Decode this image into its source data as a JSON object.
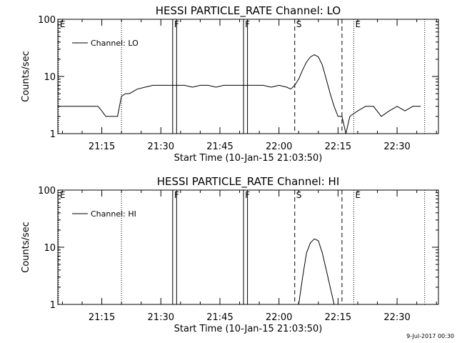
{
  "footer": {
    "stamp": "9-Jul-2017 00:30"
  },
  "chart_data": [
    {
      "type": "line",
      "title": "HESSI PARTICLE_RATE Channel: LO",
      "xlabel": "Start Time (10-Jan-15 21:03:50)",
      "ylabel": "Counts/sec",
      "xlim": [
        "21:03:50",
        "22:40:30"
      ],
      "ylim": [
        1,
        100
      ],
      "yscale": "log",
      "x_ticks": [
        "21:15",
        "21:30",
        "21:45",
        "22:00",
        "22:15",
        "22:30"
      ],
      "y_ticks": [
        "1",
        "10",
        "100"
      ],
      "legend": {
        "position": "top-left",
        "entries": [
          "Channel: LO"
        ]
      },
      "markers": [
        {
          "time": "21:04:00",
          "style": "dotted",
          "label": "E"
        },
        {
          "time": "21:20:00",
          "style": "dotted",
          "label": ""
        },
        {
          "time": "21:33:00",
          "style": "solid",
          "label": "F"
        },
        {
          "time": "21:34:00",
          "style": "solid",
          "label": ""
        },
        {
          "time": "21:51:00",
          "style": "solid",
          "label": "F"
        },
        {
          "time": "21:52:00",
          "style": "solid",
          "label": ""
        },
        {
          "time": "22:04:00",
          "style": "dashed",
          "label": "S"
        },
        {
          "time": "22:16:00",
          "style": "dashed",
          "label": ""
        },
        {
          "time": "22:19:00",
          "style": "dotted",
          "label": "E"
        },
        {
          "time": "22:37:00",
          "style": "dotted",
          "label": ""
        }
      ],
      "series": [
        {
          "name": "Channel: LO",
          "x": [
            "21:04",
            "21:06",
            "21:08",
            "21:10",
            "21:12",
            "21:14",
            "21:15",
            "21:16",
            "21:17",
            "21:18",
            "21:19",
            "21:20",
            "21:21",
            "21:22",
            "21:24",
            "21:26",
            "21:28",
            "21:30",
            "21:32",
            "21:34",
            "21:36",
            "21:38",
            "21:40",
            "21:42",
            "21:44",
            "21:46",
            "21:48",
            "21:50",
            "21:52",
            "21:54",
            "21:56",
            "21:58",
            "22:00",
            "22:02",
            "22:03",
            "22:04",
            "22:05",
            "22:06",
            "22:07",
            "22:08",
            "22:09",
            "22:10",
            "22:11",
            "22:12",
            "22:13",
            "22:14",
            "22:15",
            "22:16",
            "22:17",
            "22:18",
            "22:20",
            "22:22",
            "22:24",
            "22:26",
            "22:28",
            "22:30",
            "22:32",
            "22:34",
            "22:36"
          ],
          "y": [
            3,
            3,
            3,
            3,
            3,
            3,
            2.5,
            2,
            2,
            2,
            2,
            4.5,
            5,
            5,
            6,
            6.5,
            7,
            7,
            7,
            7,
            7,
            6.5,
            7,
            7,
            6.5,
            7,
            7,
            7,
            7,
            7,
            7,
            6.5,
            7,
            6.5,
            6,
            7,
            9,
            13,
            18,
            22,
            24,
            22,
            16,
            9,
            5,
            3,
            2,
            2,
            1,
            2,
            2.5,
            3,
            3,
            2,
            2.5,
            3,
            2.5,
            3,
            3
          ]
        }
      ]
    },
    {
      "type": "line",
      "title": "HESSI PARTICLE_RATE Channel: HI",
      "xlabel": "Start Time (10-Jan-15 21:03:50)",
      "ylabel": "Counts/sec",
      "xlim": [
        "21:03:50",
        "22:40:30"
      ],
      "ylim": [
        1,
        100
      ],
      "yscale": "log",
      "x_ticks": [
        "21:15",
        "21:30",
        "21:45",
        "22:00",
        "22:15",
        "22:30"
      ],
      "y_ticks": [
        "1",
        "10",
        "100"
      ],
      "legend": {
        "position": "top-left",
        "entries": [
          "Channel: HI"
        ]
      },
      "markers": [
        {
          "time": "21:04:00",
          "style": "dotted",
          "label": "E"
        },
        {
          "time": "21:20:00",
          "style": "dotted",
          "label": ""
        },
        {
          "time": "21:33:00",
          "style": "solid",
          "label": "F"
        },
        {
          "time": "21:34:00",
          "style": "solid",
          "label": ""
        },
        {
          "time": "21:51:00",
          "style": "solid",
          "label": "F"
        },
        {
          "time": "21:52:00",
          "style": "solid",
          "label": ""
        },
        {
          "time": "22:04:00",
          "style": "dashed",
          "label": "S"
        },
        {
          "time": "22:16:00",
          "style": "dashed",
          "label": ""
        },
        {
          "time": "22:19:00",
          "style": "dotted",
          "label": "E"
        },
        {
          "time": "22:37:00",
          "style": "dotted",
          "label": ""
        }
      ],
      "series": [
        {
          "name": "Channel: HI",
          "x": [
            "22:05",
            "22:06",
            "22:07",
            "22:08",
            "22:09",
            "22:10",
            "22:11",
            "22:12",
            "22:13",
            "22:14"
          ],
          "y": [
            1,
            3,
            8,
            12,
            14,
            13,
            8,
            4,
            2,
            1
          ]
        }
      ]
    }
  ]
}
